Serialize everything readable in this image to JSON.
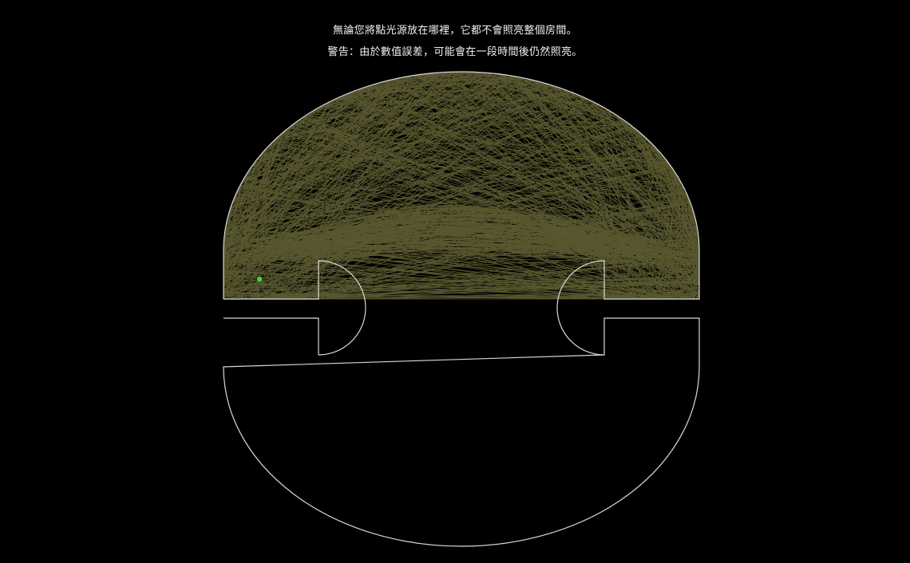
{
  "caption": {
    "line1": "無論您將點光源放在哪裡，它都不會照亮整個房間。",
    "line2": "警告：由於數值誤差，可能會在一段時間後仍然照亮。"
  },
  "colors": {
    "background": "#000000",
    "wall": "#d9d9d9",
    "ray": "#e6e27a",
    "light_source": "#33dd33",
    "text": "#f2f2f2"
  },
  "simulation": {
    "ray_count": 900
  }
}
